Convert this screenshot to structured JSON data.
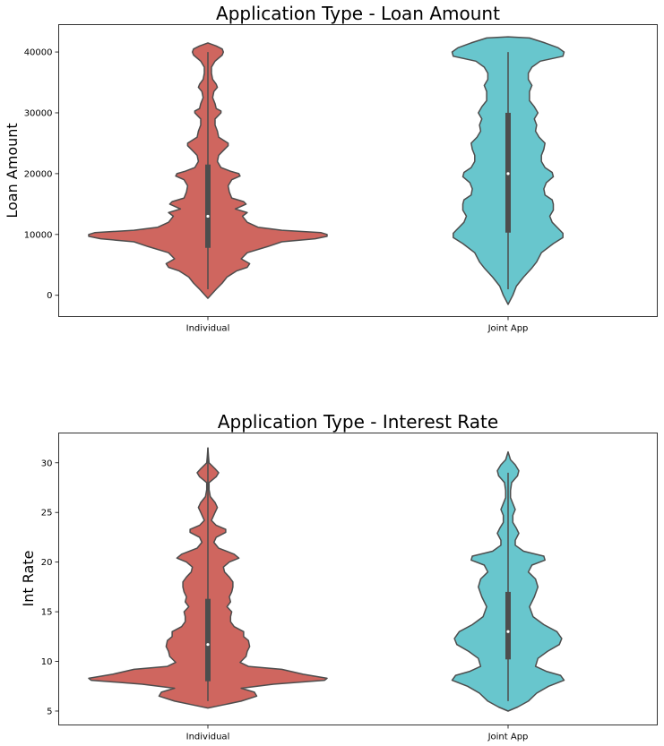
{
  "chart_data": [
    {
      "type": "violin",
      "title": "Application Type - Loan Amount",
      "xlabel": "",
      "ylabel": "Loan Amount",
      "categories": [
        "Individual",
        "Joint App"
      ],
      "ylim": [
        -3500,
        44500
      ],
      "yticks": [
        0,
        10000,
        20000,
        30000,
        40000
      ],
      "grid": false,
      "colors": [
        "#cf665f",
        "#68c6cd"
      ],
      "violins": [
        {
          "category": "Individual",
          "box": {
            "min": 1000,
            "q1": 7800,
            "median": 13000,
            "q3": 21500,
            "max": 40000
          },
          "density": [
            [
              -500,
              0.0
            ],
            [
              1000,
              0.07
            ],
            [
              2000,
              0.12
            ],
            [
              3000,
              0.16
            ],
            [
              4000,
              0.24
            ],
            [
              4600,
              0.33
            ],
            [
              5200,
              0.35
            ],
            [
              6000,
              0.28
            ],
            [
              7000,
              0.33
            ],
            [
              8000,
              0.5
            ],
            [
              8800,
              0.62
            ],
            [
              9300,
              0.9
            ],
            [
              9700,
              1.0
            ],
            [
              10000,
              1.0
            ],
            [
              10300,
              0.95
            ],
            [
              10700,
              0.62
            ],
            [
              11200,
              0.42
            ],
            [
              12000,
              0.33
            ],
            [
              13000,
              0.29
            ],
            [
              13600,
              0.33
            ],
            [
              14200,
              0.23
            ],
            [
              15000,
              0.32
            ],
            [
              15400,
              0.3
            ],
            [
              16000,
              0.2
            ],
            [
              17000,
              0.18
            ],
            [
              18000,
              0.17
            ],
            [
              19000,
              0.2
            ],
            [
              19600,
              0.27
            ],
            [
              20000,
              0.26
            ],
            [
              20400,
              0.19
            ],
            [
              21000,
              0.11
            ],
            [
              22000,
              0.08
            ],
            [
              23000,
              0.09
            ],
            [
              24000,
              0.14
            ],
            [
              24600,
              0.17
            ],
            [
              25000,
              0.17
            ],
            [
              25500,
              0.13
            ],
            [
              26000,
              0.09
            ],
            [
              27000,
              0.08
            ],
            [
              28000,
              0.06
            ],
            [
              29000,
              0.06
            ],
            [
              30000,
              0.11
            ],
            [
              30300,
              0.11
            ],
            [
              30700,
              0.07
            ],
            [
              31500,
              0.06
            ],
            [
              32500,
              0.04
            ],
            [
              33500,
              0.05
            ],
            [
              34200,
              0.08
            ],
            [
              34700,
              0.07
            ],
            [
              35500,
              0.04
            ],
            [
              36500,
              0.03
            ],
            [
              37500,
              0.03
            ],
            [
              38500,
              0.06
            ],
            [
              39500,
              0.12
            ],
            [
              40000,
              0.13
            ],
            [
              40500,
              0.12
            ],
            [
              41000,
              0.07
            ],
            [
              41500,
              0.0
            ]
          ]
        },
        {
          "category": "Joint App",
          "box": {
            "min": 1000,
            "q1": 10300,
            "median": 20000,
            "q3": 30000,
            "max": 40000
          },
          "density": [
            [
              -1500,
              0.0
            ],
            [
              0,
              0.04
            ],
            [
              1500,
              0.07
            ],
            [
              3000,
              0.13
            ],
            [
              4500,
              0.2
            ],
            [
              5500,
              0.24
            ],
            [
              7000,
              0.28
            ],
            [
              8500,
              0.38
            ],
            [
              9500,
              0.46
            ],
            [
              10200,
              0.46
            ],
            [
              11000,
              0.42
            ],
            [
              12000,
              0.37
            ],
            [
              13000,
              0.35
            ],
            [
              14000,
              0.38
            ],
            [
              15000,
              0.38
            ],
            [
              15700,
              0.37
            ],
            [
              16500,
              0.31
            ],
            [
              17500,
              0.3
            ],
            [
              18500,
              0.32
            ],
            [
              19500,
              0.38
            ],
            [
              20200,
              0.37
            ],
            [
              21000,
              0.31
            ],
            [
              22000,
              0.28
            ],
            [
              23000,
              0.28
            ],
            [
              24000,
              0.3
            ],
            [
              25000,
              0.31
            ],
            [
              26000,
              0.26
            ],
            [
              27000,
              0.23
            ],
            [
              28000,
              0.24
            ],
            [
              29000,
              0.22
            ],
            [
              30000,
              0.25
            ],
            [
              31000,
              0.22
            ],
            [
              32000,
              0.18
            ],
            [
              33500,
              0.18
            ],
            [
              34500,
              0.2
            ],
            [
              35500,
              0.17
            ],
            [
              36500,
              0.17
            ],
            [
              37500,
              0.2
            ],
            [
              38500,
              0.27
            ],
            [
              39300,
              0.46
            ],
            [
              40000,
              0.47
            ],
            [
              40700,
              0.42
            ],
            [
              41500,
              0.31
            ],
            [
              42300,
              0.18
            ],
            [
              42500,
              0.0
            ]
          ]
        }
      ]
    },
    {
      "type": "violin",
      "title": "Application Type - Interest Rate",
      "xlabel": "",
      "ylabel": "Int Rate",
      "categories": [
        "Individual",
        "Joint App"
      ],
      "ylim": [
        3.6,
        33.0
      ],
      "yticks": [
        5,
        10,
        15,
        20,
        25,
        30
      ],
      "grid": false,
      "colors": [
        "#cf665f",
        "#68c6cd"
      ],
      "violins": [
        {
          "category": "Individual",
          "box": {
            "min": 6.0,
            "q1": 8.0,
            "median": 11.7,
            "q3": 16.3,
            "max": 31.5
          },
          "density": [
            [
              5.3,
              0.0
            ],
            [
              5.6,
              0.12
            ],
            [
              6.0,
              0.28
            ],
            [
              6.5,
              0.41
            ],
            [
              6.9,
              0.39
            ],
            [
              7.3,
              0.28
            ],
            [
              7.7,
              0.55
            ],
            [
              8.1,
              0.98
            ],
            [
              8.3,
              1.0
            ],
            [
              8.7,
              0.8
            ],
            [
              9.2,
              0.62
            ],
            [
              9.5,
              0.34
            ],
            [
              9.9,
              0.27
            ],
            [
              10.5,
              0.32
            ],
            [
              11.0,
              0.33
            ],
            [
              11.5,
              0.35
            ],
            [
              12.1,
              0.34
            ],
            [
              12.5,
              0.3
            ],
            [
              13.0,
              0.3
            ],
            [
              13.5,
              0.22
            ],
            [
              14.0,
              0.19
            ],
            [
              14.5,
              0.19
            ],
            [
              15.0,
              0.2
            ],
            [
              15.5,
              0.16
            ],
            [
              16.0,
              0.19
            ],
            [
              16.5,
              0.18
            ],
            [
              17.0,
              0.2
            ],
            [
              17.5,
              0.21
            ],
            [
              18.0,
              0.21
            ],
            [
              18.5,
              0.18
            ],
            [
              19.0,
              0.14
            ],
            [
              19.5,
              0.13
            ],
            [
              20.0,
              0.18
            ],
            [
              20.4,
              0.26
            ],
            [
              20.8,
              0.22
            ],
            [
              21.4,
              0.09
            ],
            [
              22.0,
              0.05
            ],
            [
              22.5,
              0.07
            ],
            [
              23.0,
              0.15
            ],
            [
              23.3,
              0.15
            ],
            [
              23.7,
              0.07
            ],
            [
              24.2,
              0.03
            ],
            [
              25.0,
              0.06
            ],
            [
              25.5,
              0.08
            ],
            [
              26.0,
              0.06
            ],
            [
              26.6,
              0.02
            ],
            [
              27.3,
              0.01
            ],
            [
              28.0,
              0.01
            ],
            [
              28.6,
              0.07
            ],
            [
              29.0,
              0.09
            ],
            [
              29.4,
              0.06
            ],
            [
              30.0,
              0.01
            ],
            [
              30.6,
              0.005
            ],
            [
              31.5,
              0.0
            ]
          ]
        },
        {
          "category": "Joint App",
          "box": {
            "min": 6.0,
            "q1": 10.2,
            "median": 13.0,
            "q3": 17.0,
            "max": 29.0
          },
          "density": [
            [
              5.0,
              0.0
            ],
            [
              5.4,
              0.08
            ],
            [
              6.0,
              0.17
            ],
            [
              6.8,
              0.24
            ],
            [
              7.5,
              0.34
            ],
            [
              8.1,
              0.47
            ],
            [
              8.6,
              0.44
            ],
            [
              9.0,
              0.32
            ],
            [
              9.5,
              0.23
            ],
            [
              10.3,
              0.25
            ],
            [
              11.0,
              0.33
            ],
            [
              11.7,
              0.43
            ],
            [
              12.3,
              0.45
            ],
            [
              13.0,
              0.41
            ],
            [
              13.7,
              0.3
            ],
            [
              14.5,
              0.21
            ],
            [
              15.5,
              0.18
            ],
            [
              16.5,
              0.22
            ],
            [
              17.5,
              0.25
            ],
            [
              18.3,
              0.23
            ],
            [
              19.0,
              0.17
            ],
            [
              19.7,
              0.2
            ],
            [
              20.2,
              0.31
            ],
            [
              20.6,
              0.3
            ],
            [
              21.1,
              0.13
            ],
            [
              21.7,
              0.06
            ],
            [
              22.2,
              0.06
            ],
            [
              22.9,
              0.09
            ],
            [
              23.4,
              0.07
            ],
            [
              24.0,
              0.04
            ],
            [
              24.7,
              0.04
            ],
            [
              25.3,
              0.06
            ],
            [
              25.9,
              0.04
            ],
            [
              26.5,
              0.02
            ],
            [
              27.2,
              0.02
            ],
            [
              28.0,
              0.03
            ],
            [
              28.7,
              0.08
            ],
            [
              29.2,
              0.09
            ],
            [
              29.8,
              0.06
            ],
            [
              30.3,
              0.02
            ],
            [
              31.1,
              0.0
            ]
          ]
        }
      ]
    }
  ]
}
